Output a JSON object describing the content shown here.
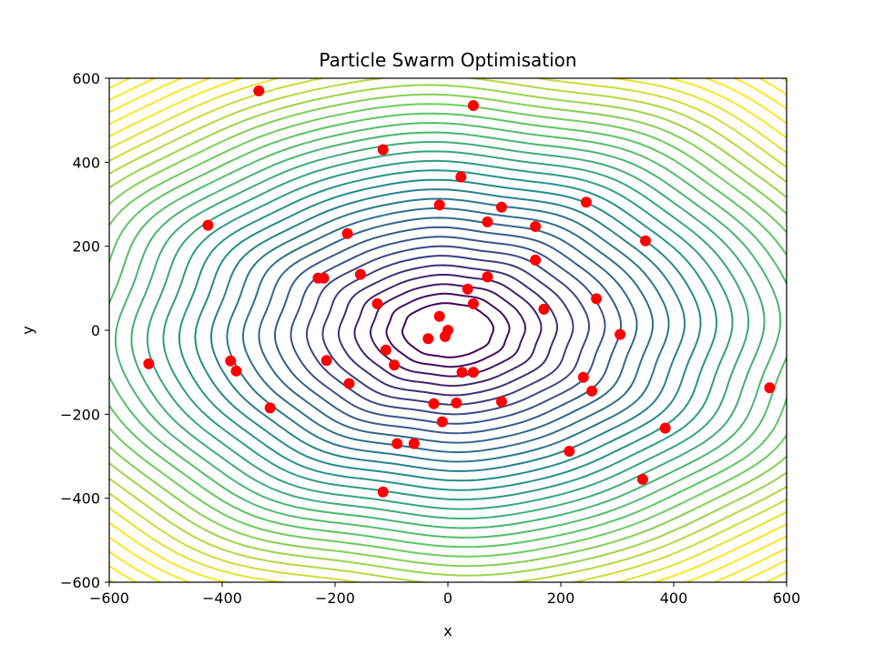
{
  "chart_data": {
    "type": "scatter",
    "title": "Particle Swarm Optimisation",
    "xlabel": "x",
    "ylabel": "y",
    "xlim": [
      -600,
      600
    ],
    "ylim": [
      -600,
      600
    ],
    "xticks": [
      -600,
      -400,
      -200,
      0,
      200,
      400,
      600
    ],
    "yticks": [
      -600,
      -400,
      -200,
      0,
      200,
      400,
      600
    ],
    "xtick_labels": [
      "−600",
      "−400",
      "−200",
      "0",
      "200",
      "400",
      "600"
    ],
    "ytick_labels": [
      "−600",
      "−400",
      "−200",
      "0",
      "200",
      "400",
      "600"
    ],
    "background": "contour",
    "contour_colormap": "viridis",
    "grid": false,
    "series": [
      {
        "marker_color": "#ff0000",
        "points": [
          [
            -335,
            570
          ],
          [
            45,
            535
          ],
          [
            -115,
            430
          ],
          [
            23,
            365
          ],
          [
            -15,
            298
          ],
          [
            95,
            293
          ],
          [
            245,
            305
          ],
          [
            70,
            258
          ],
          [
            155,
            247
          ],
          [
            -425,
            250
          ],
          [
            -178,
            230
          ],
          [
            350,
            213
          ],
          [
            155,
            167
          ],
          [
            -155,
            133
          ],
          [
            -230,
            124
          ],
          [
            -220,
            124
          ],
          [
            70,
            127
          ],
          [
            35,
            98
          ],
          [
            263,
            75
          ],
          [
            -125,
            63
          ],
          [
            45,
            63
          ],
          [
            170,
            50
          ],
          [
            -15,
            33
          ],
          [
            0,
            0
          ],
          [
            -5,
            -15
          ],
          [
            -35,
            -20
          ],
          [
            305,
            -10
          ],
          [
            -110,
            -47
          ],
          [
            -215,
            -72
          ],
          [
            -385,
            -73
          ],
          [
            -95,
            -83
          ],
          [
            -375,
            -97
          ],
          [
            25,
            -100
          ],
          [
            45,
            -100
          ],
          [
            -530,
            -80
          ],
          [
            240,
            -112
          ],
          [
            -175,
            -127
          ],
          [
            255,
            -145
          ],
          [
            570,
            -137
          ],
          [
            -25,
            -175
          ],
          [
            15,
            -173
          ],
          [
            95,
            -170
          ],
          [
            -315,
            -185
          ],
          [
            -10,
            -218
          ],
          [
            385,
            -233
          ],
          [
            -90,
            -270
          ],
          [
            -60,
            -270
          ],
          [
            215,
            -288
          ],
          [
            345,
            -355
          ],
          [
            -115,
            -385
          ]
        ]
      }
    ]
  }
}
